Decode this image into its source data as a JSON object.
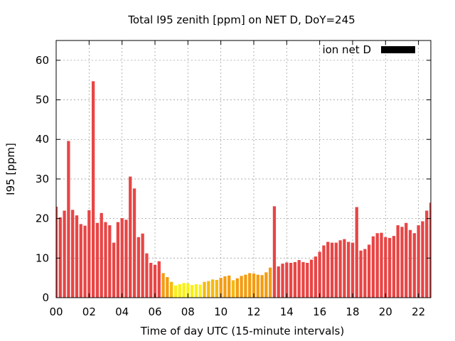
{
  "chart_data": {
    "type": "bar",
    "title": "Total I95 zenith [ppm] on NET D, DoY=245",
    "xlabel": "Time of day UTC (15-minute intervals)",
    "ylabel": "I95 [ppm]",
    "ylim": [
      0,
      65
    ],
    "yticks": [
      0,
      10,
      20,
      30,
      40,
      50,
      60
    ],
    "xlim_hours": [
      0,
      22.75
    ],
    "xticks": [
      "00",
      "02",
      "04",
      "06",
      "08",
      "10",
      "12",
      "14",
      "16",
      "18",
      "20",
      "22"
    ],
    "grid": true,
    "legend": {
      "label": "ion net D",
      "color": "#000000",
      "position": "top-right"
    },
    "bar_interval_minutes": 15,
    "bars": [
      {
        "time": "00:00",
        "value": 23.0,
        "color": "#e84545"
      },
      {
        "time": "00:15",
        "value": 20.3,
        "color": "#e84545"
      },
      {
        "time": "00:30",
        "value": 22.0,
        "color": "#e84545"
      },
      {
        "time": "00:45",
        "value": 39.6,
        "color": "#e84545"
      },
      {
        "time": "01:00",
        "value": 22.2,
        "color": "#e84545"
      },
      {
        "time": "01:15",
        "value": 20.8,
        "color": "#e84545"
      },
      {
        "time": "01:30",
        "value": 18.6,
        "color": "#e84545"
      },
      {
        "time": "01:45",
        "value": 18.2,
        "color": "#e84545"
      },
      {
        "time": "02:00",
        "value": 22.1,
        "color": "#e84545"
      },
      {
        "time": "02:15",
        "value": 54.7,
        "color": "#e84545"
      },
      {
        "time": "02:30",
        "value": 18.9,
        "color": "#e84545"
      },
      {
        "time": "02:45",
        "value": 21.4,
        "color": "#e84545"
      },
      {
        "time": "03:00",
        "value": 19.1,
        "color": "#e84545"
      },
      {
        "time": "03:15",
        "value": 18.3,
        "color": "#e84545"
      },
      {
        "time": "03:30",
        "value": 13.9,
        "color": "#e84545"
      },
      {
        "time": "03:45",
        "value": 19.1,
        "color": "#e84545"
      },
      {
        "time": "04:00",
        "value": 20.1,
        "color": "#e84545"
      },
      {
        "time": "04:15",
        "value": 19.7,
        "color": "#e84545"
      },
      {
        "time": "04:30",
        "value": 30.6,
        "color": "#e84545"
      },
      {
        "time": "04:45",
        "value": 27.6,
        "color": "#e84545"
      },
      {
        "time": "05:00",
        "value": 15.3,
        "color": "#e84545"
      },
      {
        "time": "05:15",
        "value": 16.2,
        "color": "#e84545"
      },
      {
        "time": "05:30",
        "value": 11.2,
        "color": "#e84545"
      },
      {
        "time": "05:45",
        "value": 8.8,
        "color": "#e84545"
      },
      {
        "time": "06:00",
        "value": 8.3,
        "color": "#e84545"
      },
      {
        "time": "06:15",
        "value": 9.2,
        "color": "#e84545"
      },
      {
        "time": "06:30",
        "value": 6.2,
        "color": "#f39c12"
      },
      {
        "time": "06:45",
        "value": 5.2,
        "color": "#f39c12"
      },
      {
        "time": "07:00",
        "value": 4.0,
        "color": "#f5b90f"
      },
      {
        "time": "07:15",
        "value": 3.1,
        "color": "#f9ef17"
      },
      {
        "time": "07:30",
        "value": 3.4,
        "color": "#f9ef17"
      },
      {
        "time": "07:45",
        "value": 3.7,
        "color": "#f9ef17"
      },
      {
        "time": "08:00",
        "value": 3.6,
        "color": "#f9ef17"
      },
      {
        "time": "08:15",
        "value": 3.2,
        "color": "#f9ef17"
      },
      {
        "time": "08:30",
        "value": 3.4,
        "color": "#f9ef17"
      },
      {
        "time": "08:45",
        "value": 3.3,
        "color": "#f9ef17"
      },
      {
        "time": "09:00",
        "value": 4.0,
        "color": "#f5b90f"
      },
      {
        "time": "09:15",
        "value": 4.2,
        "color": "#f5b90f"
      },
      {
        "time": "09:30",
        "value": 4.6,
        "color": "#f5b90f"
      },
      {
        "time": "09:45",
        "value": 4.5,
        "color": "#f5b90f"
      },
      {
        "time": "10:00",
        "value": 5.0,
        "color": "#f39c12"
      },
      {
        "time": "10:15",
        "value": 5.4,
        "color": "#f39c12"
      },
      {
        "time": "10:30",
        "value": 5.6,
        "color": "#f39c12"
      },
      {
        "time": "10:45",
        "value": 4.4,
        "color": "#f5b90f"
      },
      {
        "time": "11:00",
        "value": 4.9,
        "color": "#f39c12"
      },
      {
        "time": "11:15",
        "value": 5.5,
        "color": "#f39c12"
      },
      {
        "time": "11:30",
        "value": 5.8,
        "color": "#f39c12"
      },
      {
        "time": "11:45",
        "value": 6.2,
        "color": "#f39c12"
      },
      {
        "time": "12:00",
        "value": 6.1,
        "color": "#f39c12"
      },
      {
        "time": "12:15",
        "value": 5.8,
        "color": "#f39c12"
      },
      {
        "time": "12:30",
        "value": 5.7,
        "color": "#f39c12"
      },
      {
        "time": "12:45",
        "value": 6.4,
        "color": "#f39c12"
      },
      {
        "time": "13:00",
        "value": 7.6,
        "color": "#f39c12"
      },
      {
        "time": "13:15",
        "value": 23.1,
        "color": "#e84545"
      },
      {
        "time": "13:30",
        "value": 7.9,
        "color": "#e84545"
      },
      {
        "time": "13:45",
        "value": 8.6,
        "color": "#e84545"
      },
      {
        "time": "14:00",
        "value": 8.9,
        "color": "#e84545"
      },
      {
        "time": "14:15",
        "value": 8.8,
        "color": "#e84545"
      },
      {
        "time": "14:30",
        "value": 9.0,
        "color": "#e84545"
      },
      {
        "time": "14:45",
        "value": 9.5,
        "color": "#e84545"
      },
      {
        "time": "15:00",
        "value": 9.0,
        "color": "#e84545"
      },
      {
        "time": "15:15",
        "value": 8.8,
        "color": "#e84545"
      },
      {
        "time": "15:30",
        "value": 9.6,
        "color": "#e84545"
      },
      {
        "time": "15:45",
        "value": 10.4,
        "color": "#e84545"
      },
      {
        "time": "16:00",
        "value": 11.6,
        "color": "#e84545"
      },
      {
        "time": "16:15",
        "value": 13.2,
        "color": "#e84545"
      },
      {
        "time": "16:30",
        "value": 14.1,
        "color": "#e84545"
      },
      {
        "time": "16:45",
        "value": 13.9,
        "color": "#e84545"
      },
      {
        "time": "17:00",
        "value": 13.9,
        "color": "#e84545"
      },
      {
        "time": "17:15",
        "value": 14.5,
        "color": "#e84545"
      },
      {
        "time": "17:30",
        "value": 14.8,
        "color": "#e84545"
      },
      {
        "time": "17:45",
        "value": 14.1,
        "color": "#e84545"
      },
      {
        "time": "18:00",
        "value": 13.9,
        "color": "#e84545"
      },
      {
        "time": "18:15",
        "value": 22.9,
        "color": "#e84545"
      },
      {
        "time": "18:30",
        "value": 11.9,
        "color": "#e84545"
      },
      {
        "time": "18:45",
        "value": 12.3,
        "color": "#e84545"
      },
      {
        "time": "19:00",
        "value": 13.4,
        "color": "#e84545"
      },
      {
        "time": "19:15",
        "value": 15.5,
        "color": "#e84545"
      },
      {
        "time": "19:30",
        "value": 16.3,
        "color": "#e84545"
      },
      {
        "time": "19:45",
        "value": 16.4,
        "color": "#e84545"
      },
      {
        "time": "20:00",
        "value": 15.3,
        "color": "#e84545"
      },
      {
        "time": "20:15",
        "value": 15.1,
        "color": "#e84545"
      },
      {
        "time": "20:30",
        "value": 15.6,
        "color": "#e84545"
      },
      {
        "time": "20:45",
        "value": 18.3,
        "color": "#e84545"
      },
      {
        "time": "21:00",
        "value": 17.9,
        "color": "#e84545"
      },
      {
        "time": "21:15",
        "value": 18.9,
        "color": "#e84545"
      },
      {
        "time": "21:30",
        "value": 17.1,
        "color": "#e84545"
      },
      {
        "time": "21:45",
        "value": 16.3,
        "color": "#e84545"
      },
      {
        "time": "22:00",
        "value": 18.3,
        "color": "#e84545"
      },
      {
        "time": "22:15",
        "value": 19.3,
        "color": "#e84545"
      },
      {
        "time": "22:30",
        "value": 22.0,
        "color": "#e84545"
      },
      {
        "time": "22:45",
        "value": 24.0,
        "color": "#e84545"
      }
    ]
  }
}
